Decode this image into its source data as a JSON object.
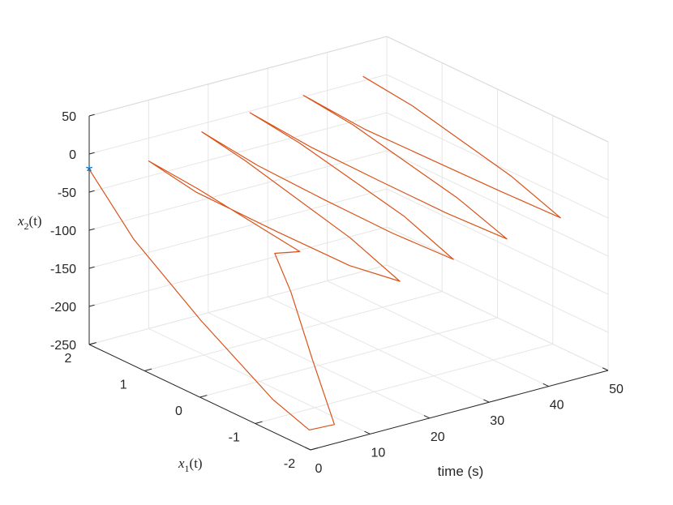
{
  "chart_data": {
    "type": "line",
    "projection": "3d",
    "xlabel_text": "time (s)",
    "ylabel_main": "x",
    "ylabel_sub": "1",
    "ylabel_arg": "(t)",
    "zlabel_main": "x",
    "zlabel_sub": "2",
    "zlabel_arg": "(t)",
    "xlim": [
      0,
      50
    ],
    "ylim": [
      -2,
      2
    ],
    "zlim": [
      -250,
      50
    ],
    "x_ticks": [
      "0",
      "10",
      "20",
      "30",
      "40",
      "50"
    ],
    "y_ticks": [
      "-2",
      "-1",
      "0",
      "1",
      "2"
    ],
    "z_ticks": [
      "-250",
      "-200",
      "-150",
      "-100",
      "-50",
      "0",
      "50"
    ],
    "grid": true,
    "box": "back-planes",
    "start_marker": {
      "symbol": "*",
      "color": "#0072BD",
      "t": 0,
      "x1": 2,
      "x2": -20
    },
    "series": [
      {
        "color": "#D95319",
        "points": [
          [
            0,
            2,
            -20
          ],
          [
            1,
            1.3,
            -90
          ],
          [
            2,
            0.2,
            -160
          ],
          [
            3,
            -1.0,
            -225
          ],
          [
            3.5,
            -1.6,
            -245
          ],
          [
            4,
            -2.0,
            -225
          ],
          [
            5,
            -1.5,
            -160
          ],
          [
            6,
            -1.0,
            -90
          ],
          [
            7,
            -0.6,
            -55
          ],
          [
            7.5,
            -1.0,
            -40
          ],
          [
            9,
            1.0,
            -30
          ],
          [
            10,
            2.0,
            -30
          ],
          [
            11.5,
            1.3,
            -50
          ],
          [
            13,
            0.0,
            -60
          ],
          [
            14,
            -1.2,
            -65
          ],
          [
            15,
            -2.0,
            -60
          ],
          [
            16,
            -1.0,
            -40
          ],
          [
            17,
            1.0,
            -10
          ],
          [
            18,
            1.9,
            -5
          ],
          [
            19,
            1.0,
            -20
          ],
          [
            21,
            0.0,
            -35
          ],
          [
            23,
            -1.0,
            -48
          ],
          [
            24,
            -2.0,
            -50
          ],
          [
            25,
            -1.0,
            -30
          ],
          [
            26,
            1.0,
            -5
          ],
          [
            27,
            2.0,
            -2
          ],
          [
            28,
            1.0,
            -15
          ],
          [
            30,
            0.0,
            -28
          ],
          [
            32,
            -1.0,
            -40
          ],
          [
            33,
            -2.0,
            -42
          ],
          [
            34,
            -1.0,
            -25
          ],
          [
            35,
            1.0,
            0
          ],
          [
            36,
            2.0,
            2
          ],
          [
            37,
            1.0,
            -10
          ],
          [
            39,
            0.0,
            -20
          ],
          [
            41,
            -1.0,
            -30
          ],
          [
            42,
            -2.0,
            -33
          ],
          [
            43,
            -1.0,
            -15
          ],
          [
            45,
            1.0,
            4
          ],
          [
            46,
            2.0,
            6
          ]
        ]
      }
    ]
  }
}
